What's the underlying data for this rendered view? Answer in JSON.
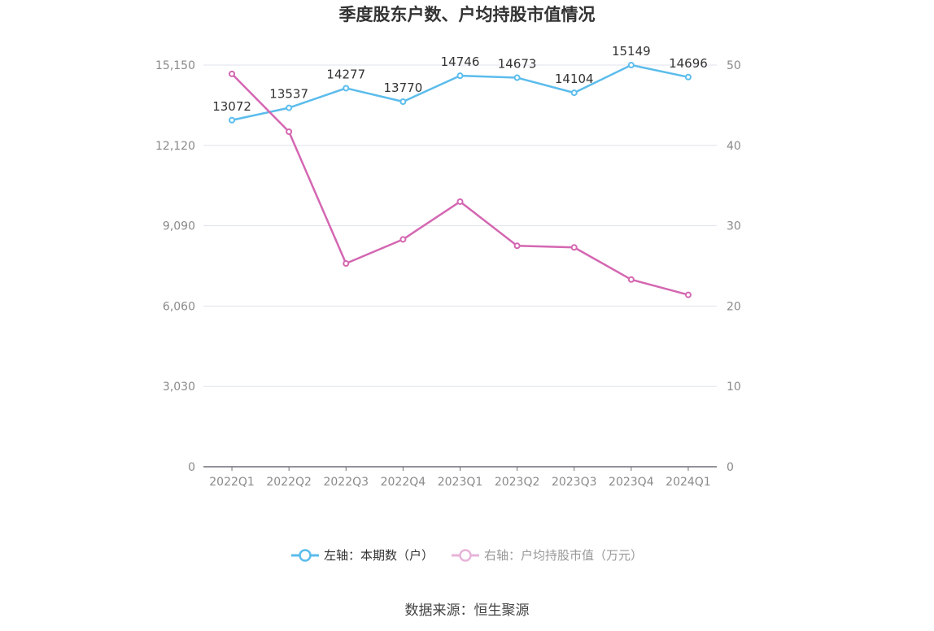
{
  "title": "季度股东户数、户均持股市值情况",
  "source": "数据来源：恒生聚源",
  "colors": {
    "left_series": "#5bbcec",
    "right_series": "#d467b2",
    "grid": "#e0e3ee",
    "axis": "#6e7079",
    "tick_text": "#8a8a8a"
  },
  "chart_data": {
    "type": "line",
    "categories": [
      "2022Q1",
      "2022Q2",
      "2022Q3",
      "2022Q4",
      "2023Q1",
      "2023Q2",
      "2023Q3",
      "2023Q4",
      "2024Q1"
    ],
    "left_axis": {
      "min": 0,
      "max": 15150,
      "ticks": [
        "0",
        "3,030",
        "6,060",
        "9,090",
        "12,120",
        "15,150"
      ]
    },
    "right_axis": {
      "min": 0,
      "max": 50,
      "ticks": [
        "0",
        "10",
        "20",
        "30",
        "40",
        "50"
      ]
    },
    "series": [
      {
        "name": "左轴：本期数（户）",
        "axis": "left",
        "values": [
          13072,
          13537,
          14277,
          13770,
          14746,
          14673,
          14104,
          15149,
          14696
        ],
        "labels": [
          "13072",
          "13537",
          "14277",
          "13770",
          "14746",
          "14673",
          "14104",
          "15149",
          "14696"
        ]
      },
      {
        "name": "右轴：户均持股市值（万元）",
        "axis": "right",
        "values": [
          48.9,
          41.7,
          25.3,
          28.3,
          33.0,
          27.5,
          27.3,
          23.3,
          21.4
        ]
      }
    ],
    "grid": true,
    "legend_position": "bottom-center"
  }
}
